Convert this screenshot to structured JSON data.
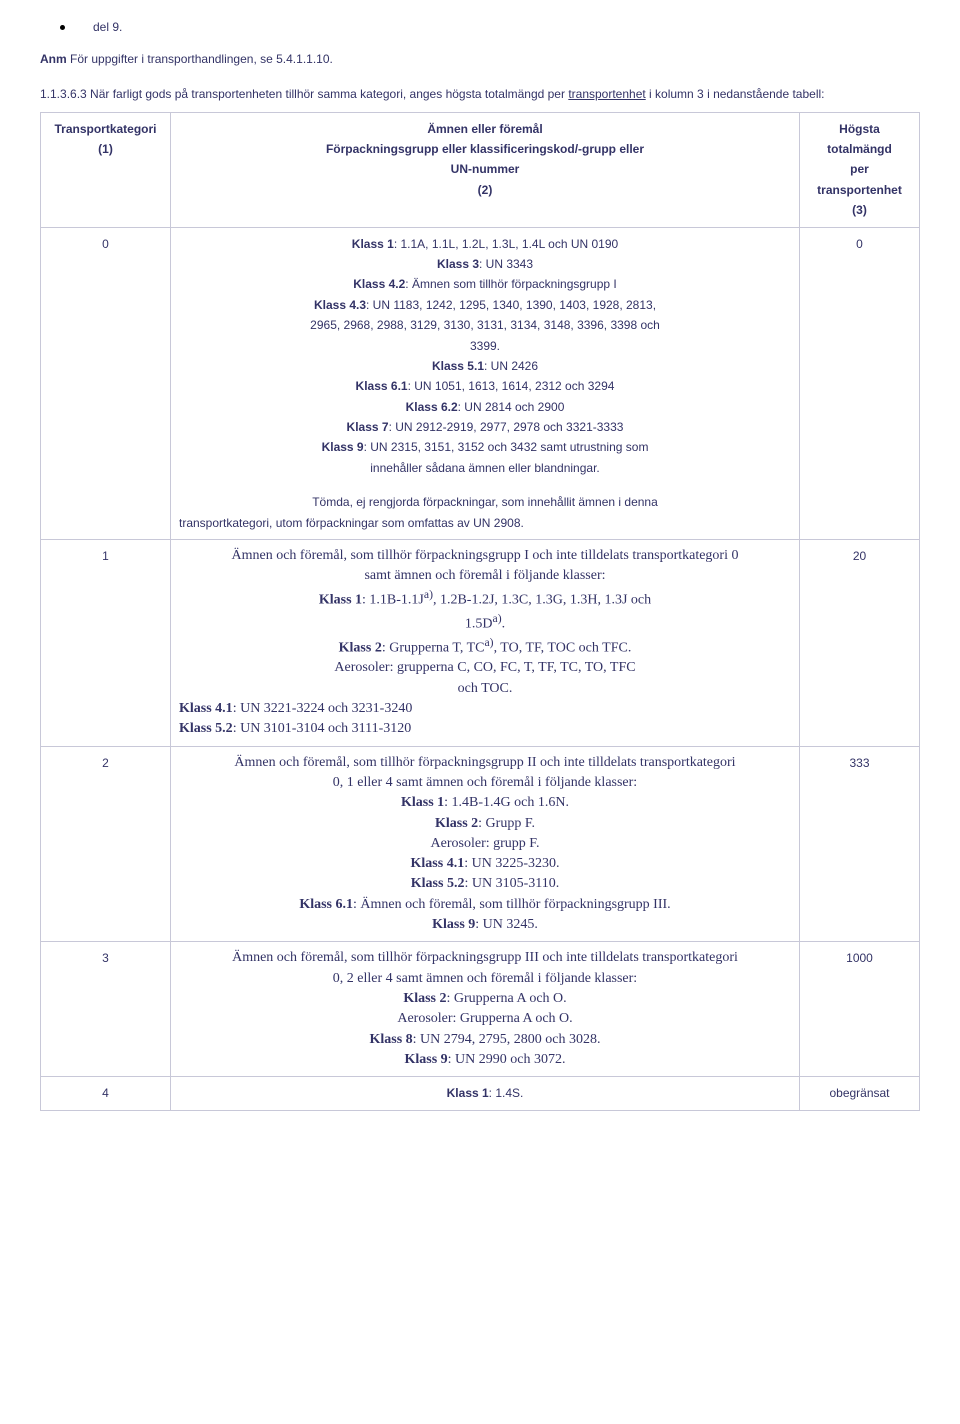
{
  "bullet": {
    "text": "del 9."
  },
  "note": {
    "prefix": "Anm",
    "rest": " För uppgifter i transporthandlingen, se 5.4.1.1.10."
  },
  "intro": {
    "lead": "1.1.3.6.3 När farligt gods på transportenheten tillhör samma kategori, anges högsta totalmängd per ",
    "u": "transportenhet",
    "tail": " i kolumn 3 i nedanstående tabell:"
  },
  "header": {
    "col1_l1": "Transportkategori",
    "col1_l2": "(1)",
    "col2_l1": "Ämnen eller föremål",
    "col2_l2": "Förpackningsgrupp eller klassificeringskod/-grupp eller",
    "col2_l3": "UN-nummer",
    "col2_l4": "(2)",
    "col3_l1": "Högsta",
    "col3_l2": "totalmängd",
    "col3_l3": "per",
    "col3_l4": "transportenhet",
    "col3_l5": "(3)"
  },
  "row0": {
    "cat": "0",
    "limit": "0",
    "lines": {
      "a": "Klass 1",
      "a2": ": 1.1A, 1.1L, 1.2L, 1.3L, 1.4L och UN 0190",
      "b": "Klass 3",
      "b2": ": UN 3343",
      "c": "Klass 4.2",
      "c2": ": Ämnen som tillhör förpackningsgrupp I",
      "d": "Klass 4.3",
      "d2": ": UN 1183, 1242, 1295, 1340, 1390, 1403, 1928, 2813,",
      "d3": "2965, 2968, 2988, 3129, 3130, 3131, 3134, 3148, 3396, 3398 och",
      "d4": "3399.",
      "e": "Klass 5.1",
      "e2": ": UN 2426",
      "f": "Klass 6.1",
      "f2": ": UN 1051, 1613, 1614, 2312 och 3294",
      "g": "Klass 6.2",
      "g2": ": UN 2814 och 2900",
      "h": "Klass 7",
      "h2": ": UN 2912-2919, 2977, 2978 och 3321-3333",
      "i": "Klass 9",
      "i2": ": UN 2315, 3151, 3152 och 3432 samt utrustning som",
      "i3": "innehåller sådana ämnen eller blandningar.",
      "j": "Tömda, ej rengjorda förpackningar, som innehållit ämnen i denna",
      "k": "transportkategori, utom förpackningar som omfattas av UN 2908."
    }
  },
  "row1": {
    "cat": "1",
    "limit": "20",
    "l1": "Ämnen och föremål, som tillhör förpackningsgrupp I och inte tilldelats transportkategori 0",
    "l2": "samt ämnen och föremål i följande klasser:",
    "l3a": "Klass 1",
    "l3b": ": 1.1B-1.1J",
    "l3sup": "a)",
    "l3c": ", 1.2B-1.2J, 1.3C, 1.3G, 1.3H, 1.3J och",
    "l4a": "1.5D",
    "l4sup": "a)",
    "l4b": ".",
    "l5a": "Klass 2",
    "l5b": ": Grupperna T, TC",
    "l5sup": "a)",
    "l5c": ", TO, TF, TOC och TFC.",
    "l6": "Aerosoler: grupperna C, CO, FC, T, TF, TC, TO, TFC",
    "l7": "och TOC.",
    "l8a": "Klass 4.1",
    "l8b": ": UN 3221-3224 och 3231-3240",
    "l9a": "Klass 5.2",
    "l9b": ": UN 3101-3104 och 3111-3120"
  },
  "row2": {
    "cat": "2",
    "limit": "333",
    "l1": "Ämnen och föremål, som tillhör förpackningsgrupp II och inte tilldelats transportkategori",
    "l2": "0, 1 eller 4 samt ämnen och föremål i följande klasser:",
    "l3a": "Klass 1",
    "l3b": ": 1.4B-1.4G och 1.6N.",
    "l4a": "Klass 2",
    "l4b": ": Grupp F.",
    "l5": "Aerosoler: grupp F.",
    "l6a": "Klass 4.1",
    "l6b": ": UN 3225-3230.",
    "l7a": "Klass 5.2",
    "l7b": ": UN 3105-3110.",
    "l8a": "Klass 6.1",
    "l8b": ": Ämnen och föremål, som tillhör förpackningsgrupp III.",
    "l9a": "Klass 9",
    "l9b": ": UN 3245."
  },
  "row3": {
    "cat": "3",
    "limit": "1000",
    "l1": "Ämnen och föremål, som tillhör förpackningsgrupp III och inte tilldelats transportkategori",
    "l2": "0, 2 eller 4 samt ämnen och föremål i följande klasser:",
    "l3a": "Klass 2",
    "l3b": ": Grupperna A och O.",
    "l4": "Aerosoler: Grupperna A och O.",
    "l5a": "Klass 8",
    "l5b": ": UN 2794, 2795, 2800 och 3028.",
    "l6a": "Klass 9",
    "l6b": ": UN 2990 och 3072."
  },
  "row4": {
    "cat": "4",
    "limit": "obegränsat",
    "l1a": "Klass 1",
    "l1b": ": 1.4S."
  },
  "colors": {
    "text": "#333366",
    "border": "#c8c8d8",
    "bg": "#ffffff"
  }
}
